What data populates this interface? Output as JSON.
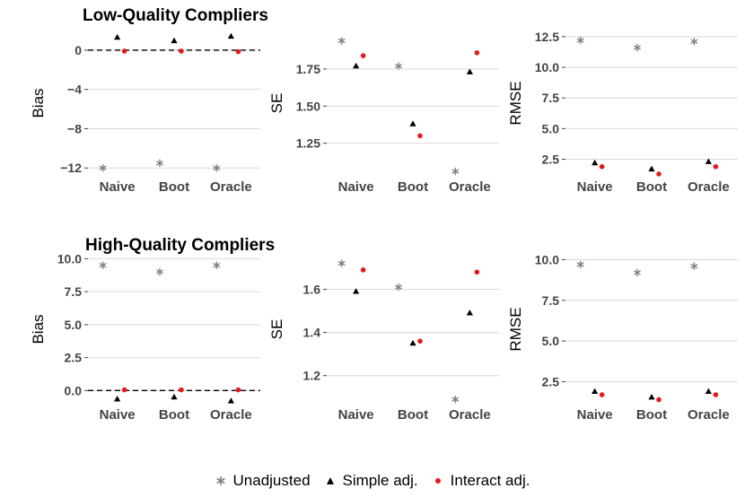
{
  "legend": {
    "unadjusted": "Unadjusted",
    "simple": "Simple adj.",
    "interact": "Interact adj."
  },
  "colors": {
    "unadjusted": "#7f7f7f",
    "simple": "#000000",
    "interact": "#e41a1c"
  },
  "chart_data": [
    {
      "type": "scatter",
      "row": "low",
      "metric": "bias",
      "title": "Low-Quality Compliers",
      "ylabel": "Bias",
      "categories": [
        "Naive",
        "Boot",
        "Oracle"
      ],
      "ylim": [
        -12.8,
        2.0
      ],
      "yticks": [
        0,
        -4,
        -8,
        -12
      ],
      "ytick_labels": [
        "0",
        "−4",
        "−8",
        "−12"
      ],
      "hline": 0,
      "series": [
        {
          "name": "Unadjusted",
          "values": [
            -12.0,
            -11.5,
            -12.0
          ]
        },
        {
          "name": "Simple adj.",
          "values": [
            1.3,
            0.95,
            1.4
          ]
        },
        {
          "name": "Interact adj.",
          "values": [
            -0.1,
            -0.1,
            -0.15
          ]
        }
      ]
    },
    {
      "type": "scatter",
      "row": "low",
      "metric": "se",
      "title": "",
      "ylabel": "SE",
      "categories": [
        "Naive",
        "Boot",
        "Oracle"
      ],
      "ylim": [
        1.03,
        2.01
      ],
      "yticks": [
        1.75,
        1.5,
        1.25
      ],
      "ytick_labels": [
        "1.75",
        "1.50",
        "1.25"
      ],
      "series": [
        {
          "name": "Unadjusted",
          "values": [
            1.94,
            1.77,
            1.06
          ]
        },
        {
          "name": "Simple adj.",
          "values": [
            1.77,
            1.38,
            1.73
          ]
        },
        {
          "name": "Interact adj.",
          "values": [
            1.84,
            1.3,
            1.86
          ]
        }
      ]
    },
    {
      "type": "scatter",
      "row": "low",
      "metric": "rmse",
      "title": "",
      "ylabel": "RMSE",
      "categories": [
        "Naive",
        "Boot",
        "Oracle"
      ],
      "ylim": [
        1.15,
        13.0
      ],
      "yticks": [
        12.5,
        10.0,
        7.5,
        5.0,
        2.5
      ],
      "ytick_labels": [
        "12.5",
        "10.0",
        "7.5",
        "5.0",
        "2.5"
      ],
      "series": [
        {
          "name": "Unadjusted",
          "values": [
            12.2,
            11.6,
            12.1
          ]
        },
        {
          "name": "Simple adj.",
          "values": [
            2.2,
            1.7,
            2.3
          ]
        },
        {
          "name": "Interact adj.",
          "values": [
            1.9,
            1.3,
            1.9
          ]
        }
      ]
    },
    {
      "type": "scatter",
      "row": "high",
      "metric": "bias",
      "title": "High-Quality Compliers",
      "ylabel": "Bias",
      "categories": [
        "Naive",
        "Boot",
        "Oracle"
      ],
      "ylim": [
        -1.0,
        10.3
      ],
      "yticks": [
        10.0,
        7.5,
        5.0,
        2.5,
        0.0
      ],
      "ytick_labels": [
        "10.0",
        "7.5",
        "5.0",
        "2.5",
        "0.0"
      ],
      "hline": 0,
      "series": [
        {
          "name": "Unadjusted",
          "values": [
            9.5,
            9.0,
            9.5
          ]
        },
        {
          "name": "Simple adj.",
          "values": [
            -0.65,
            -0.5,
            -0.8
          ]
        },
        {
          "name": "Interact adj.",
          "values": [
            0.05,
            0.05,
            0.05
          ]
        }
      ]
    },
    {
      "type": "scatter",
      "row": "high",
      "metric": "se",
      "title": "",
      "ylabel": "SE",
      "categories": [
        "Naive",
        "Boot",
        "Oracle"
      ],
      "ylim": [
        1.07,
        1.76
      ],
      "yticks": [
        1.6,
        1.4,
        1.2
      ],
      "ytick_labels": [
        "1.6",
        "1.4",
        "1.2"
      ],
      "series": [
        {
          "name": "Unadjusted",
          "values": [
            1.72,
            1.61,
            1.09
          ]
        },
        {
          "name": "Simple adj.",
          "values": [
            1.59,
            1.35,
            1.49
          ]
        },
        {
          "name": "Interact adj.",
          "values": [
            1.69,
            1.36,
            1.68
          ]
        }
      ]
    },
    {
      "type": "scatter",
      "row": "high",
      "metric": "rmse",
      "title": "",
      "ylabel": "RMSE",
      "categories": [
        "Naive",
        "Boot",
        "Oracle"
      ],
      "ylim": [
        1.15,
        10.3
      ],
      "yticks": [
        10.0,
        7.5,
        5.0,
        2.5
      ],
      "ytick_labels": [
        "10.0",
        "7.5",
        "5.0",
        "2.5"
      ],
      "series": [
        {
          "name": "Unadjusted",
          "values": [
            9.7,
            9.2,
            9.6
          ]
        },
        {
          "name": "Simple adj.",
          "values": [
            1.9,
            1.55,
            1.9
          ]
        },
        {
          "name": "Interact adj.",
          "values": [
            1.7,
            1.4,
            1.7
          ]
        }
      ]
    }
  ]
}
